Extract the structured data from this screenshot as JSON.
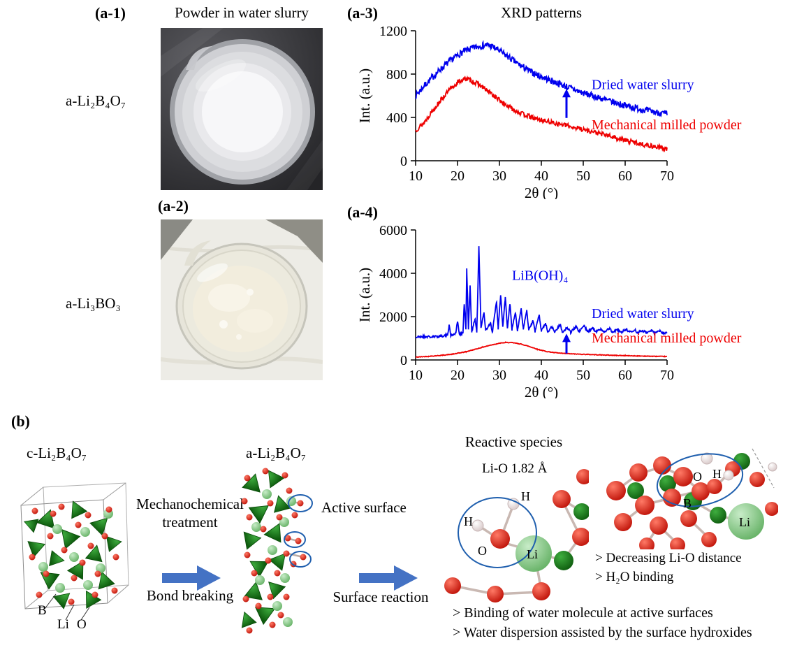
{
  "figure": {
    "panel_a1": {
      "tag": "(a-1)",
      "title": "Powder in water slurry",
      "sample_label": "a-Li₂B₄O₇"
    },
    "panel_a2": {
      "tag": "(a-2)",
      "sample_label": "a-Li₃BO₃"
    },
    "panel_a3": {
      "tag": "(a-3)",
      "title": "XRD patterns"
    },
    "panel_a4": {
      "tag": "(a-4)"
    },
    "panel_b": {
      "tag": "(b)",
      "crystal_label": "c-Li₂B₄O₇",
      "amorphous_label": "a-Li₂B₄O₇",
      "atom_labels": {
        "B": "B",
        "Li": "Li",
        "O": "O"
      },
      "process1_top": "Mechanochemical treatment",
      "process1_bottom": "Bond breaking",
      "active_surface": "Active surface",
      "process2_bottom": "Surface reaction",
      "reactive_title": "Reactive species",
      "bond_length": "Li-O 1.82 Å",
      "mol1_labels": {
        "H": "H",
        "O": "O",
        "Li": "Li"
      },
      "mol2_labels": {
        "O": "O",
        "H": "H",
        "B": "B",
        "Li": "Li"
      },
      "findings": [
        "> Decreasing Li-O distance",
        "> H₂O binding"
      ],
      "conclusions": [
        "> Binding of water molecule at active surfaces",
        "> Water dispersion assisted by the surface hydroxides"
      ]
    },
    "colors": {
      "curve_blue": "#0000EE",
      "curve_red": "#EE0000",
      "process_arrow": "#4472C4",
      "highlight_ellipse": "#1F5FAE"
    }
  },
  "chart_data": [
    {
      "id": "a3",
      "type": "line",
      "title": "XRD patterns",
      "xlabel": "2θ (°)",
      "ylabel": "Int. (a.u.)",
      "xlim": [
        10,
        70
      ],
      "ylim": [
        0,
        1200
      ],
      "xticks": [
        10,
        20,
        30,
        40,
        50,
        60,
        70
      ],
      "yticks": [
        0,
        400,
        800,
        1200
      ],
      "grid": false,
      "legend_position": "annotated-on-plot",
      "series": [
        {
          "name": "Dried water slurry",
          "color": "#0000EE",
          "noise": 30,
          "seed": 7,
          "points": [
            [
              10,
              600
            ],
            [
              12,
              690
            ],
            [
              14,
              770
            ],
            [
              16,
              845
            ],
            [
              18,
              915
            ],
            [
              20,
              975
            ],
            [
              22,
              1020
            ],
            [
              24,
              1045
            ],
            [
              26,
              1065
            ],
            [
              27,
              1070
            ],
            [
              28,
              1060
            ],
            [
              30,
              1015
            ],
            [
              32,
              960
            ],
            [
              34,
              905
            ],
            [
              36,
              855
            ],
            [
              38,
              810
            ],
            [
              40,
              775
            ],
            [
              43,
              730
            ],
            [
              46,
              685
            ],
            [
              50,
              625
            ],
            [
              55,
              565
            ],
            [
              60,
              510
            ],
            [
              65,
              465
            ],
            [
              70,
              430
            ]
          ]
        },
        {
          "name": "Mechanical milled powder",
          "color": "#EE0000",
          "noise": 22,
          "seed": 13,
          "points": [
            [
              10,
              280
            ],
            [
              12,
              350
            ],
            [
              14,
              460
            ],
            [
              16,
              560
            ],
            [
              18,
              650
            ],
            [
              20,
              720
            ],
            [
              21,
              745
            ],
            [
              22,
              755
            ],
            [
              23,
              745
            ],
            [
              25,
              705
            ],
            [
              27,
              650
            ],
            [
              29,
              590
            ],
            [
              31,
              530
            ],
            [
              33,
              480
            ],
            [
              35,
              440
            ],
            [
              38,
              395
            ],
            [
              40,
              375
            ],
            [
              43,
              350
            ],
            [
              46,
              325
            ],
            [
              50,
              290
            ],
            [
              55,
              240
            ],
            [
              60,
              190
            ],
            [
              65,
              145
            ],
            [
              70,
              110
            ]
          ]
        }
      ],
      "annotations": [
        {
          "text": "Dried water slurry",
          "x": 52,
          "y": 660,
          "color": "#0000EE"
        },
        {
          "text": "Mechanical milled powder",
          "x": 52,
          "y": 290,
          "color": "#EE0000"
        }
      ],
      "arrow": {
        "x": 46,
        "y0": 395,
        "y1": 650,
        "color": "#0000EE"
      }
    },
    {
      "id": "a4",
      "type": "line",
      "title": "",
      "xlabel": "2θ (°)",
      "ylabel": "Int. (a.u.)",
      "xlim": [
        10,
        70
      ],
      "ylim": [
        0,
        6000
      ],
      "xticks": [
        10,
        20,
        30,
        40,
        50,
        60,
        70
      ],
      "yticks": [
        0,
        2000,
        4000,
        6000
      ],
      "grid": false,
      "legend_position": "annotated-on-plot",
      "series": [
        {
          "name": "Dried water slurry",
          "color": "#0000EE",
          "noise": 55,
          "seed": 21,
          "points": [
            [
              10,
              1050
            ],
            [
              12,
              1080
            ],
            [
              14,
              1060
            ],
            [
              16,
              1100
            ],
            [
              17.6,
              1150
            ],
            [
              18,
              1600
            ],
            [
              18.4,
              1120
            ],
            [
              19.6,
              1250
            ],
            [
              20,
              1800
            ],
            [
              20.4,
              1200
            ],
            [
              21.3,
              1250
            ],
            [
              21.6,
              2600
            ],
            [
              22,
              1400
            ],
            [
              22.2,
              4200
            ],
            [
              22.6,
              1400
            ],
            [
              23,
              3400
            ],
            [
              23.4,
              1300
            ],
            [
              24.2,
              1900
            ],
            [
              24.6,
              1300
            ],
            [
              25.1,
              5200
            ],
            [
              25.6,
              1500
            ],
            [
              26.3,
              2200
            ],
            [
              26.7,
              1350
            ],
            [
              27.9,
              1700
            ],
            [
              28.3,
              1250
            ],
            [
              29.3,
              2700
            ],
            [
              29.7,
              1450
            ],
            [
              30.3,
              3000
            ],
            [
              30.8,
              1500
            ],
            [
              31.4,
              2900
            ],
            [
              31.9,
              1450
            ],
            [
              32.5,
              2600
            ],
            [
              33,
              1400
            ],
            [
              33.8,
              2200
            ],
            [
              34.3,
              1380
            ],
            [
              35.2,
              2400
            ],
            [
              35.7,
              1400
            ],
            [
              36.5,
              2300
            ],
            [
              37,
              1380
            ],
            [
              38,
              1800
            ],
            [
              38.5,
              1320
            ],
            [
              39.5,
              2100
            ],
            [
              40,
              1350
            ],
            [
              41,
              1700
            ],
            [
              41.5,
              1300
            ],
            [
              42.5,
              1550
            ],
            [
              43.2,
              1280
            ],
            [
              44.5,
              1650
            ],
            [
              45,
              1280
            ],
            [
              46.2,
              1500
            ],
            [
              47,
              1270
            ],
            [
              48.2,
              1550
            ],
            [
              49,
              1300
            ],
            [
              50.2,
              1600
            ],
            [
              51,
              1300
            ],
            [
              52.2,
              1480
            ],
            [
              53,
              1290
            ],
            [
              54.2,
              1430
            ],
            [
              55,
              1300
            ],
            [
              56.3,
              1450
            ],
            [
              57,
              1280
            ],
            [
              58.2,
              1400
            ],
            [
              59,
              1270
            ],
            [
              60.2,
              1420
            ],
            [
              61,
              1280
            ],
            [
              62.3,
              1380
            ],
            [
              63,
              1260
            ],
            [
              64.2,
              1360
            ],
            [
              65,
              1250
            ],
            [
              66.2,
              1370
            ],
            [
              67,
              1260
            ],
            [
              68.2,
              1330
            ],
            [
              69,
              1240
            ],
            [
              70,
              1260
            ]
          ]
        },
        {
          "name": "Mechanical milled powder",
          "color": "#EE0000",
          "noise": 14,
          "seed": 42,
          "points": [
            [
              10,
              130
            ],
            [
              13,
              165
            ],
            [
              16,
              210
            ],
            [
              19,
              270
            ],
            [
              22,
              380
            ],
            [
              24,
              480
            ],
            [
              26,
              590
            ],
            [
              28,
              690
            ],
            [
              30,
              770
            ],
            [
              31.5,
              805
            ],
            [
              33,
              800
            ],
            [
              35,
              740
            ],
            [
              37,
              630
            ],
            [
              39,
              500
            ],
            [
              41,
              400
            ],
            [
              43,
              340
            ],
            [
              45,
              305
            ],
            [
              48,
              275
            ],
            [
              51,
              255
            ],
            [
              54,
              235
            ],
            [
              57,
              215
            ],
            [
              60,
              200
            ],
            [
              63,
              185
            ],
            [
              66,
              172
            ],
            [
              70,
              158
            ]
          ]
        }
      ],
      "annotations": [
        {
          "text": "LiB(OH)₄",
          "x": 33,
          "y": 3700,
          "color": "#0000EE"
        },
        {
          "text": "Dried water slurry",
          "x": 52,
          "y": 1930,
          "color": "#0000EE"
        },
        {
          "text": "Mechanical milled powder",
          "x": 52,
          "y": 800,
          "color": "#EE0000"
        }
      ],
      "arrow": {
        "x": 46,
        "y0": 300,
        "y1": 1150,
        "color": "#0000EE"
      }
    }
  ]
}
